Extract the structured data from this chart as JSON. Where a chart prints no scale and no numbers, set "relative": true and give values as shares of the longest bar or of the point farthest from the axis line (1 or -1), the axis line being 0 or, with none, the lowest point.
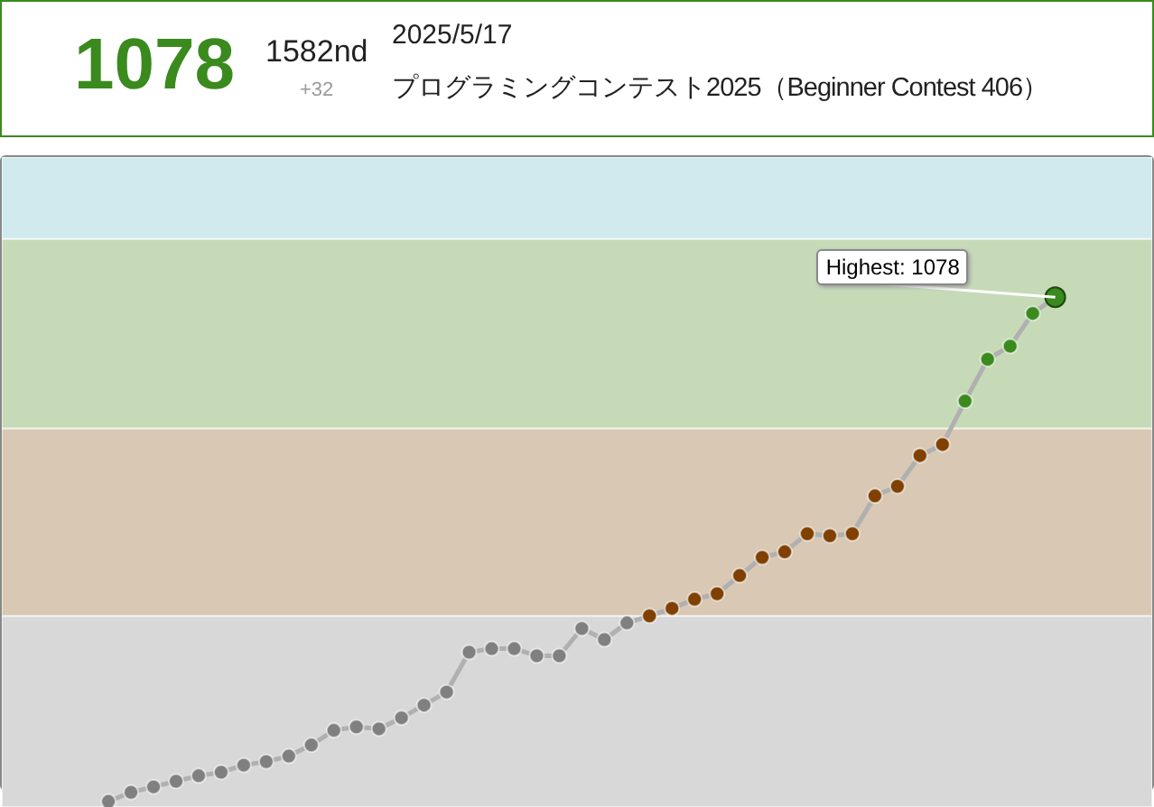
{
  "chart_data": {
    "type": "line",
    "relative": true,
    "categories": [
      null,
      null,
      null,
      null,
      null,
      null,
      null,
      null,
      null,
      null,
      null,
      null,
      null,
      null,
      null,
      null,
      null,
      null,
      null,
      null,
      null,
      null,
      null,
      null,
      null,
      null,
      null,
      null,
      null,
      null,
      null,
      null,
      null,
      null,
      null,
      null,
      null,
      null,
      null,
      null,
      null,
      null,
      null
    ],
    "series": [
      {
        "color": "#b0b0b0",
        "marker": "circle",
        "values": [
          0,
          0.018,
          0.029,
          0.04,
          0.051,
          0.058,
          0.072,
          0.079,
          0.09,
          0.112,
          0.141,
          0.148,
          0.144,
          0.166,
          0.191,
          0.217,
          0.296,
          0.303,
          0.303,
          0.289,
          0.289,
          0.343,
          0.321,
          0.354,
          0.368,
          0.383,
          0.401,
          0.412,
          0.448,
          0.484,
          0.495,
          0.531,
          0.527,
          0.531,
          0.606,
          0.625,
          0.686,
          0.708,
          0.794,
          0.877,
          0.903,
          0.968,
          1
        ],
        "colors": [
          "#808080",
          "#808080",
          "#808080",
          "#808080",
          "#808080",
          "#808080",
          "#808080",
          "#808080",
          "#808080",
          "#808080",
          "#808080",
          "#808080",
          "#808080",
          "#808080",
          "#808080",
          "#808080",
          "#808080",
          "#808080",
          "#808080",
          "#808080",
          "#808080",
          "#808080",
          "#808080",
          "#808080",
          "#804000",
          "#804000",
          "#804000",
          "#804000",
          "#804000",
          "#804000",
          "#804000",
          "#804000",
          "#804000",
          "#804000",
          "#804000",
          "#804000",
          "#804000",
          "#804000",
          "#3a8a1e",
          "#3a8a1e",
          "#3a8a1e",
          "#3a8a1e",
          "#3a8a1e"
        ]
      }
    ],
    "bands": [
      {
        "axis": "y",
        "from": -0.011,
        "to": 0.368,
        "color": "#d8d8d8"
      },
      {
        "axis": "y",
        "from": 0.368,
        "to": 0.74,
        "color": "#d8c8b4"
      },
      {
        "axis": "y",
        "from": 0.74,
        "to": 1.116,
        "color": "#c6dab8"
      },
      {
        "axis": "y",
        "from": 1.116,
        "to": 1.278,
        "color": "#d0eaee"
      }
    ],
    "annotations": [
      "1078",
      "1582nd",
      "+32",
      "2025/5/17",
      "プログラミングコンテスト2025（Beginner Contest 406）",
      "Highest: 1078"
    ]
  }
}
